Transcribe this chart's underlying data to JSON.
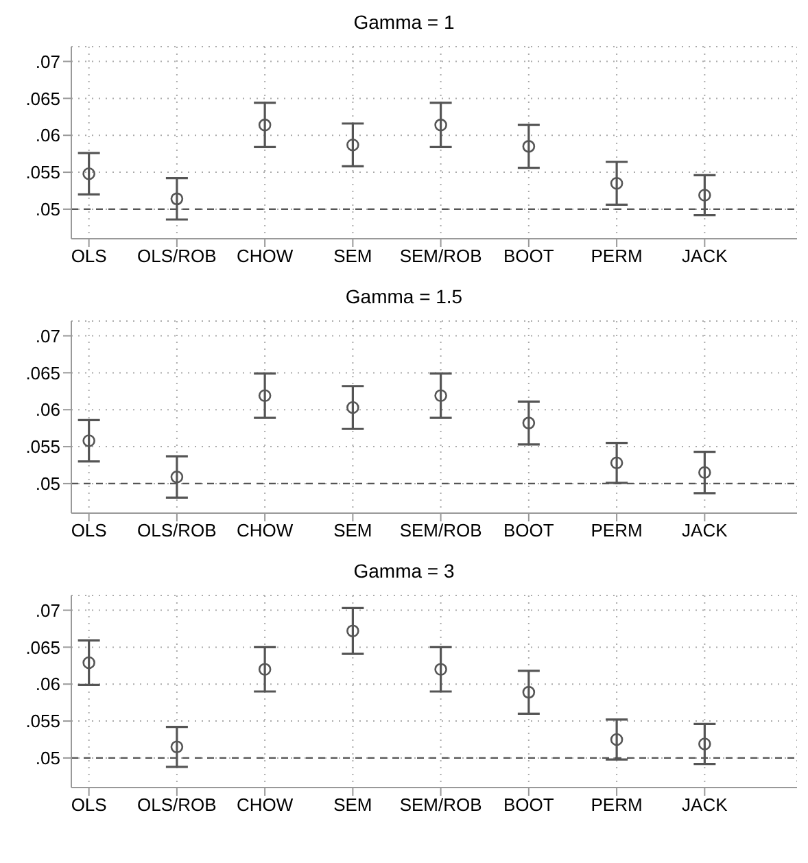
{
  "chart_data": [
    {
      "type": "scatter",
      "title": "Gamma = 1",
      "categories": [
        "OLS",
        "OLS/ROB",
        "CHOW",
        "SEM",
        "SEM/ROB",
        "BOOT",
        "PERM",
        "JACK"
      ],
      "series": [
        {
          "color": "#555555",
          "values": [
            0.0548,
            0.0514,
            0.0614,
            0.0587,
            0.0614,
            0.0585,
            0.0535,
            0.0519
          ],
          "errors": [
            0.0028,
            0.0028,
            0.003,
            0.0029,
            0.003,
            0.0029,
            0.0029,
            0.0027
          ]
        }
      ],
      "ylim": [
        0.046,
        0.072
      ],
      "yticks": [
        {
          "value": 0.05,
          "label": ".05"
        },
        {
          "value": 0.055,
          "label": ".055"
        },
        {
          "value": 0.06,
          "label": ".06"
        },
        {
          "value": 0.065,
          "label": ".065"
        },
        {
          "value": 0.07,
          "label": ".07"
        }
      ],
      "grid": true,
      "marker": "circle",
      "ref_lines": [
        {
          "axis": "y",
          "value": 0.05,
          "line_style": "dashed",
          "color": "#555555"
        }
      ]
    },
    {
      "type": "scatter",
      "title": "Gamma = 1.5",
      "categories": [
        "OLS",
        "OLS/ROB",
        "CHOW",
        "SEM",
        "SEM/ROB",
        "BOOT",
        "PERM",
        "JACK"
      ],
      "series": [
        {
          "color": "#555555",
          "values": [
            0.0558,
            0.0509,
            0.0619,
            0.0603,
            0.0619,
            0.0582,
            0.0528,
            0.0515
          ],
          "errors": [
            0.0028,
            0.0028,
            0.003,
            0.0029,
            0.003,
            0.0029,
            0.0027,
            0.0028
          ]
        }
      ],
      "ylim": [
        0.046,
        0.072
      ],
      "yticks": [
        {
          "value": 0.05,
          "label": ".05"
        },
        {
          "value": 0.055,
          "label": ".055"
        },
        {
          "value": 0.06,
          "label": ".06"
        },
        {
          "value": 0.065,
          "label": ".065"
        },
        {
          "value": 0.07,
          "label": ".07"
        }
      ],
      "grid": true,
      "marker": "circle",
      "ref_lines": [
        {
          "axis": "y",
          "value": 0.05,
          "line_style": "dashed",
          "color": "#555555"
        }
      ]
    },
    {
      "type": "scatter",
      "title": "Gamma = 3",
      "categories": [
        "OLS",
        "OLS/ROB",
        "CHOW",
        "SEM",
        "SEM/ROB",
        "BOOT",
        "PERM",
        "JACK"
      ],
      "series": [
        {
          "color": "#555555",
          "values": [
            0.0629,
            0.0515,
            0.062,
            0.0672,
            0.062,
            0.0589,
            0.0525,
            0.0519
          ],
          "errors": [
            0.003,
            0.0027,
            0.003,
            0.0031,
            0.003,
            0.0029,
            0.0027,
            0.0027
          ]
        }
      ],
      "ylim": [
        0.046,
        0.072
      ],
      "yticks": [
        {
          "value": 0.05,
          "label": ".05"
        },
        {
          "value": 0.055,
          "label": ".055"
        },
        {
          "value": 0.06,
          "label": ".06"
        },
        {
          "value": 0.065,
          "label": ".065"
        },
        {
          "value": 0.07,
          "label": ".07"
        }
      ],
      "grid": true,
      "marker": "circle",
      "ref_lines": [
        {
          "axis": "y",
          "value": 0.05,
          "line_style": "dashed",
          "color": "#555555"
        }
      ]
    }
  ]
}
